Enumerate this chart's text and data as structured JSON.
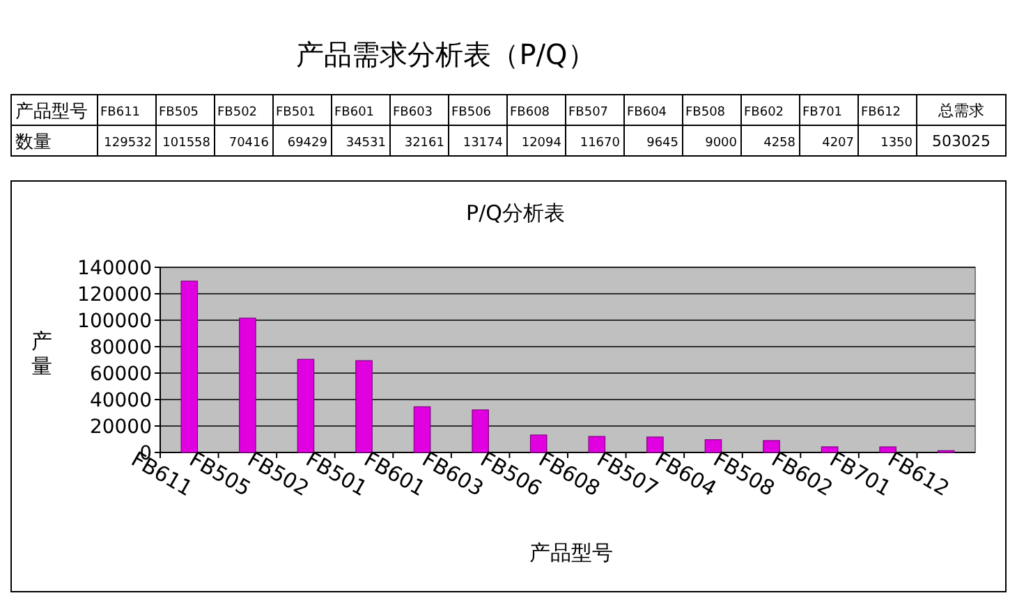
{
  "chart_data": [
    {
      "type": "other",
      "title": "产品需求分析表（P/Q）",
      "categories": [
        "FB611",
        "FB505",
        "FB502",
        "FB501",
        "FB601",
        "FB603",
        "FB506",
        "FB608",
        "FB507",
        "FB604",
        "FB508",
        "FB602",
        "FB701",
        "FB612"
      ],
      "values": [
        129532,
        101558,
        70416,
        69429,
        34531,
        32161,
        13174,
        12094,
        11670,
        9645,
        9000,
        4258,
        4207,
        1350
      ],
      "data_labels": true,
      "annotations": [
        "产品型号",
        "数量",
        "总需求",
        "503025"
      ]
    },
    {
      "type": "bar",
      "title": "P/Q分析表",
      "categories": [
        "FB611",
        "FB505",
        "FB502",
        "FB501",
        "FB601",
        "FB603",
        "FB506",
        "FB608",
        "FB507",
        "FB604",
        "FB508",
        "FB602",
        "FB701",
        "FB612"
      ],
      "values": [
        129532,
        101558,
        70416,
        69429,
        34531,
        32161,
        13174,
        12094,
        11670,
        9645,
        9000,
        4258,
        4207,
        1350
      ],
      "color": "#e000e0",
      "xlabel": "产品型号",
      "ylabel": "产量",
      "ylim": [
        0,
        140000
      ],
      "yticks": [
        0,
        20000,
        40000,
        60000,
        80000,
        100000,
        120000,
        140000
      ],
      "grid": "y"
    }
  ]
}
